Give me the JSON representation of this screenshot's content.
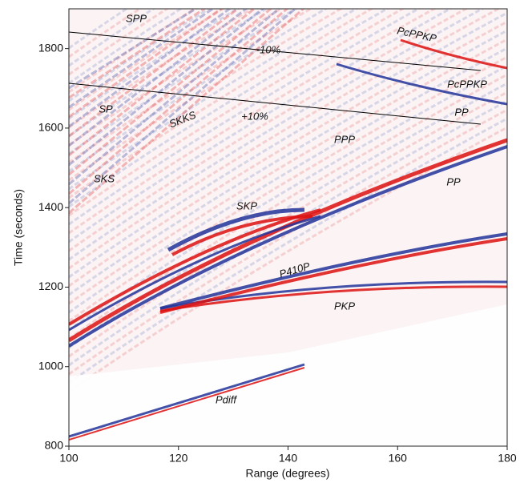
{
  "chart_data": {
    "type": "record-section",
    "xlabel": "Range (degrees)",
    "ylabel": "Time (seconds)",
    "xlim": [
      100,
      180
    ],
    "xticks": [
      100,
      120,
      140,
      160,
      180
    ],
    "ylim": [
      800,
      1900
    ],
    "yticks": [
      800,
      1000,
      1200,
      1400,
      1600,
      1800
    ],
    "annotations": [
      "SPP",
      "-10%",
      "PcPPKP",
      "SP",
      "SKKS",
      "+10%",
      "PcPPKP",
      "PP",
      "PPP",
      "SKS",
      "PP",
      "SKP",
      "P410P",
      "PKP",
      "Pdiff"
    ]
  }
}
